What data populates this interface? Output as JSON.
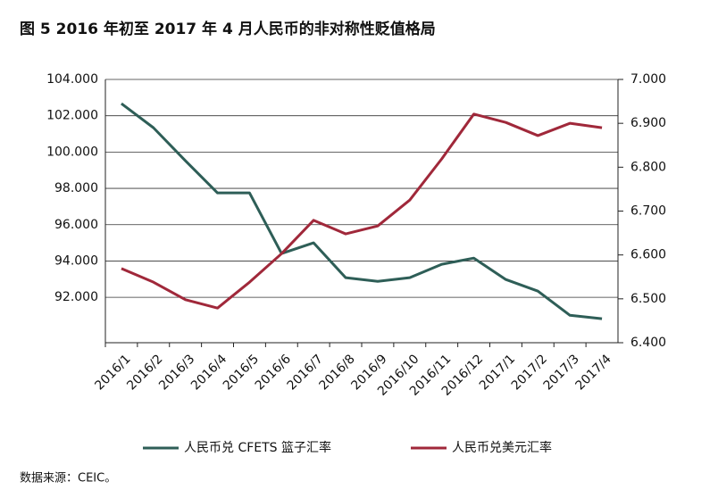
{
  "chart_data": {
    "type": "line",
    "title": "图 5  2016 年初至 2017 年 4 月人民币的非对称性贬值格局",
    "source": "数据来源：CEIC。",
    "categories": [
      "2016/1",
      "2016/2",
      "2016/3",
      "2016/4",
      "2016/5",
      "2016/6",
      "2016/7",
      "2016/8",
      "2016/9",
      "2016/10",
      "2016/11",
      "2016/12",
      "2017/1",
      "2017/2",
      "2017/3",
      "2017/4"
    ],
    "series": [
      {
        "name": "人民币兑 CFETS 篮子汇率",
        "color": "#2e5e57",
        "values": [
          102.67,
          101.34,
          99.52,
          97.75,
          97.75,
          94.41,
          95.0,
          93.08,
          92.88,
          93.08,
          93.82,
          94.16,
          92.98,
          92.34,
          91.01,
          90.82
        ]
      },
      {
        "name": "人民币兑美元汇率",
        "color": "#a0283a",
        "axis": "y2",
        "values": [
          6.569,
          6.538,
          6.498,
          6.479,
          6.538,
          6.603,
          6.679,
          6.648,
          6.666,
          6.725,
          6.819,
          6.921,
          6.902,
          6.872,
          6.9,
          6.89
        ]
      }
    ],
    "ylim": [
      89.5,
      104
    ],
    "yticks": [
      {
        "value": 104,
        "label": "104.000"
      },
      {
        "value": 102,
        "label": "102.000"
      },
      {
        "value": 100,
        "label": "100.000"
      },
      {
        "value": 98,
        "label": "98.000"
      },
      {
        "value": 96,
        "label": "96.000"
      },
      {
        "value": 94,
        "label": "94.000"
      },
      {
        "value": 92,
        "label": "92.000"
      }
    ],
    "y2lim": [
      6.4,
      7.0
    ],
    "y2ticks": [
      {
        "value": 7.0,
        "label": "7.000"
      },
      {
        "value": 6.9,
        "label": "6.900"
      },
      {
        "value": 6.8,
        "label": "6.800"
      },
      {
        "value": 6.7,
        "label": "6.700"
      },
      {
        "value": 6.6,
        "label": "6.600"
      },
      {
        "value": 6.5,
        "label": "6.500"
      },
      {
        "value": 6.4,
        "label": "6.400"
      }
    ],
    "grid": true,
    "legend": "bottom"
  }
}
